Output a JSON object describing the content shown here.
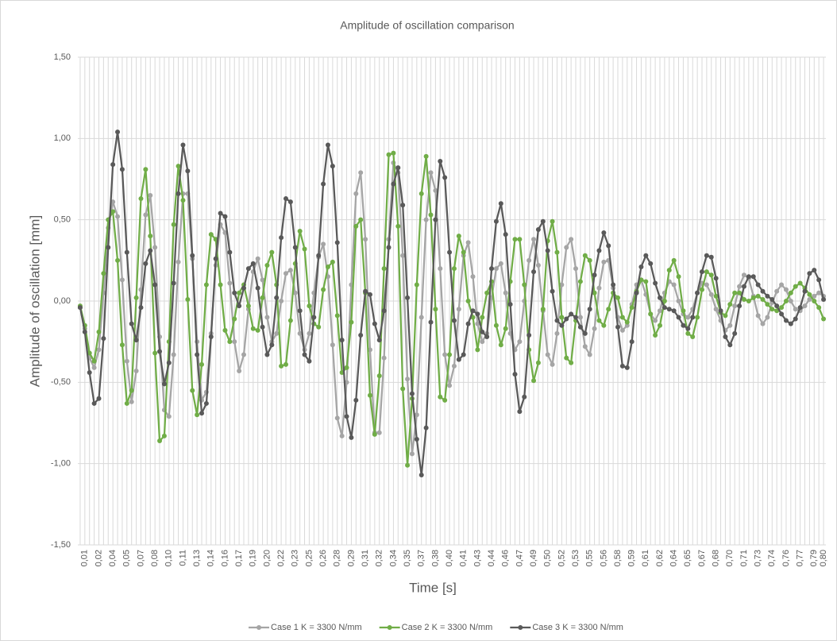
{
  "chart_data": {
    "type": "line",
    "title": "Amplitude of oscillation comparison",
    "x_label": "Time [s]",
    "y_label": "Amplitude of oscillation [mm]",
    "categories": [
      null,
      "0,01",
      null,
      null,
      "0,02",
      null,
      null,
      "0,04",
      null,
      null,
      "0,05",
      null,
      null,
      "0,07",
      null,
      null,
      "0,08",
      null,
      null,
      "0,10",
      null,
      null,
      "0,11",
      null,
      null,
      "0,13",
      null,
      null,
      "0,14",
      null,
      null,
      "0,16",
      null,
      null,
      "0,17",
      null,
      null,
      "0,19",
      null,
      null,
      "0,20",
      null,
      null,
      "0,22",
      null,
      null,
      "0,23",
      null,
      null,
      "0,25",
      null,
      null,
      "0,26",
      null,
      null,
      "0,28",
      null,
      null,
      "0,29",
      null,
      null,
      "0,31",
      null,
      null,
      "0,32",
      null,
      null,
      "0,34",
      null,
      null,
      "0,35",
      null,
      null,
      "0,37",
      null,
      null,
      "0,38",
      null,
      null,
      "0,40",
      null,
      null,
      "0,41",
      null,
      null,
      "0,43",
      null,
      null,
      "0,44",
      null,
      null,
      "0,46",
      null,
      null,
      "0,47",
      null,
      null,
      "0,49",
      null,
      null,
      "0,50",
      null,
      null,
      "0,52",
      null,
      null,
      "0,53",
      null,
      null,
      "0,55",
      null,
      null,
      "0,56",
      null,
      null,
      "0,58",
      null,
      null,
      "0,59",
      null,
      null,
      "0,61",
      null,
      null,
      "0,62",
      null,
      null,
      "0,64",
      null,
      null,
      "0,65",
      null,
      null,
      "0,67",
      null,
      null,
      "0,68",
      null,
      null,
      "0,70",
      null,
      null,
      "0,71",
      null,
      null,
      "0,73",
      null,
      null,
      "0,74",
      null,
      null,
      "0,76",
      null,
      null,
      "0,77",
      null,
      null,
      "0,79",
      null,
      "0,80"
    ],
    "ylim": [
      -1.5,
      1.5
    ],
    "yticks": [
      {
        "value": -1.5,
        "label": "-1,50"
      },
      {
        "value": -1,
        "label": "-1,00"
      },
      {
        "value": -0.5,
        "label": "-0,50"
      },
      {
        "value": 0,
        "label": "0,00"
      },
      {
        "value": 0.5,
        "label": "0,50"
      },
      {
        "value": 1,
        "label": "1,00"
      },
      {
        "value": 1.5,
        "label": "1,50"
      }
    ],
    "grid": true,
    "legend": "bottom",
    "series": [
      {
        "name": "Case 1 K = 3300 N/mm",
        "color": "#a5a5a5",
        "values": [
          -0.04,
          -0.17,
          -0.35,
          -0.41,
          -0.3,
          0.05,
          0.45,
          0.61,
          0.52,
          0.13,
          -0.37,
          -0.62,
          -0.43,
          0.07,
          0.53,
          0.65,
          0.33,
          -0.22,
          -0.67,
          -0.71,
          -0.33,
          0.24,
          0.66,
          0.66,
          0.26,
          -0.25,
          -0.61,
          -0.56,
          -0.2,
          0.22,
          0.47,
          0.42,
          0.11,
          -0.25,
          -0.43,
          -0.33,
          -0.05,
          0.18,
          0.26,
          0.13,
          -0.1,
          -0.25,
          -0.2,
          0.0,
          0.17,
          0.19,
          0.05,
          -0.2,
          -0.3,
          -0.2,
          0.05,
          0.27,
          0.35,
          0.15,
          -0.27,
          -0.72,
          -0.83,
          -0.5,
          0.1,
          0.66,
          0.79,
          0.38,
          -0.3,
          -0.81,
          -0.81,
          -0.35,
          0.38,
          0.85,
          0.79,
          0.28,
          -0.48,
          -0.94,
          -0.7,
          -0.1,
          0.5,
          0.79,
          0.68,
          0.2,
          -0.33,
          -0.52,
          -0.4,
          -0.05,
          0.28,
          0.36,
          0.15,
          -0.14,
          -0.25,
          -0.2,
          0.02,
          0.2,
          0.23,
          0.05,
          -0.2,
          -0.3,
          -0.25,
          0.0,
          0.25,
          0.38,
          0.22,
          -0.06,
          -0.33,
          -0.39,
          -0.2,
          0.1,
          0.33,
          0.38,
          0.2,
          -0.1,
          -0.28,
          -0.33,
          -0.17,
          0.08,
          0.24,
          0.25,
          0.08,
          -0.1,
          -0.18,
          -0.15,
          -0.02,
          0.1,
          0.13,
          0.04,
          -0.08,
          -0.12,
          -0.06,
          0.05,
          0.12,
          0.1,
          0.0,
          -0.08,
          -0.1,
          -0.05,
          0.05,
          0.11,
          0.1,
          0.04,
          -0.05,
          -0.12,
          -0.18,
          -0.15,
          -0.03,
          0.09,
          0.16,
          0.14,
          0.03,
          -0.09,
          -0.14,
          -0.1,
          -0.01,
          0.06,
          0.1,
          0.07,
          0.0,
          -0.05,
          -0.06,
          -0.03,
          0.01,
          0.03,
          0.05,
          0.03
        ]
      },
      {
        "name": "Case 2 K = 3300 N/mm",
        "color": "#70ad47",
        "values": [
          -0.03,
          -0.15,
          -0.32,
          -0.37,
          -0.19,
          0.17,
          0.5,
          0.55,
          0.25,
          -0.27,
          -0.63,
          -0.55,
          0.02,
          0.63,
          0.81,
          0.4,
          -0.32,
          -0.86,
          -0.83,
          -0.25,
          0.47,
          0.83,
          0.62,
          0.01,
          -0.55,
          -0.7,
          -0.39,
          0.1,
          0.41,
          0.38,
          0.1,
          -0.18,
          -0.25,
          -0.11,
          0.05,
          0.1,
          -0.03,
          -0.17,
          -0.18,
          0.02,
          0.22,
          0.3,
          0.1,
          -0.4,
          -0.39,
          -0.12,
          0.23,
          0.43,
          0.32,
          -0.03,
          -0.14,
          -0.16,
          0.07,
          0.21,
          0.24,
          -0.09,
          -0.44,
          -0.41,
          -0.13,
          0.46,
          0.5,
          0.05,
          -0.58,
          -0.82,
          -0.46,
          0.2,
          0.9,
          0.91,
          0.46,
          -0.54,
          -1.01,
          -0.6,
          0.1,
          0.66,
          0.89,
          0.53,
          -0.05,
          -0.59,
          -0.61,
          -0.33,
          0.2,
          0.4,
          0.3,
          0.0,
          -0.1,
          -0.3,
          -0.1,
          0.05,
          0.12,
          -0.15,
          -0.27,
          -0.17,
          0.12,
          0.38,
          0.38,
          0.1,
          -0.3,
          -0.49,
          -0.38,
          -0.05,
          0.37,
          0.49,
          0.3,
          -0.1,
          -0.35,
          -0.38,
          -0.12,
          0.12,
          0.28,
          0.25,
          0.05,
          -0.12,
          -0.15,
          -0.05,
          0.05,
          0.02,
          -0.1,
          -0.13,
          -0.04,
          0.06,
          0.13,
          0.12,
          -0.08,
          -0.21,
          -0.15,
          0.0,
          0.19,
          0.25,
          0.15,
          -0.06,
          -0.2,
          -0.22,
          -0.1,
          0.07,
          0.18,
          0.16,
          0.03,
          -0.07,
          -0.09,
          -0.02,
          0.05,
          0.05,
          0.01,
          0.0,
          0.02,
          0.03,
          0.01,
          -0.02,
          -0.05,
          -0.06,
          -0.04,
          0.0,
          0.05,
          0.09,
          0.11,
          0.08,
          0.04,
          0.0,
          -0.04,
          -0.11
        ]
      },
      {
        "name": "Case 3 K = 3300 N/mm",
        "color": "#595959",
        "values": [
          -0.04,
          -0.19,
          -0.44,
          -0.63,
          -0.6,
          -0.23,
          0.33,
          0.84,
          1.04,
          0.81,
          0.3,
          -0.14,
          -0.24,
          -0.04,
          0.23,
          0.31,
          0.1,
          -0.31,
          -0.51,
          -0.38,
          0.11,
          0.66,
          0.96,
          0.8,
          0.28,
          -0.33,
          -0.69,
          -0.63,
          -0.22,
          0.26,
          0.54,
          0.52,
          0.3,
          0.05,
          -0.03,
          0.08,
          0.2,
          0.23,
          0.08,
          -0.16,
          -0.33,
          -0.27,
          0.02,
          0.39,
          0.63,
          0.61,
          0.33,
          -0.06,
          -0.33,
          -0.37,
          -0.1,
          0.28,
          0.72,
          0.96,
          0.83,
          0.36,
          -0.24,
          -0.71,
          -0.84,
          -0.61,
          -0.21,
          0.06,
          0.04,
          -0.14,
          -0.24,
          -0.06,
          0.33,
          0.72,
          0.82,
          0.59,
          0.02,
          -0.57,
          -0.85,
          -1.07,
          -0.78,
          -0.13,
          0.5,
          0.86,
          0.76,
          0.3,
          -0.12,
          -0.36,
          -0.33,
          -0.14,
          -0.06,
          -0.08,
          -0.19,
          -0.22,
          0.2,
          0.49,
          0.6,
          0.41,
          -0.02,
          -0.45,
          -0.68,
          -0.59,
          -0.21,
          0.18,
          0.44,
          0.49,
          0.31,
          0.06,
          -0.12,
          -0.15,
          -0.11,
          -0.08,
          -0.1,
          -0.16,
          -0.2,
          -0.05,
          0.16,
          0.31,
          0.42,
          0.34,
          0.1,
          -0.16,
          -0.4,
          -0.41,
          -0.25,
          0.05,
          0.21,
          0.28,
          0.23,
          0.11,
          0.02,
          -0.04,
          -0.05,
          -0.06,
          -0.1,
          -0.15,
          -0.17,
          -0.1,
          0.05,
          0.18,
          0.28,
          0.27,
          0.14,
          -0.06,
          -0.22,
          -0.27,
          -0.2,
          -0.03,
          0.09,
          0.15,
          0.15,
          0.1,
          0.06,
          0.03,
          0.01,
          -0.03,
          -0.08,
          -0.12,
          -0.14,
          -0.11,
          -0.04,
          0.06,
          0.17,
          0.19,
          0.13,
          0.01
        ]
      }
    ]
  }
}
